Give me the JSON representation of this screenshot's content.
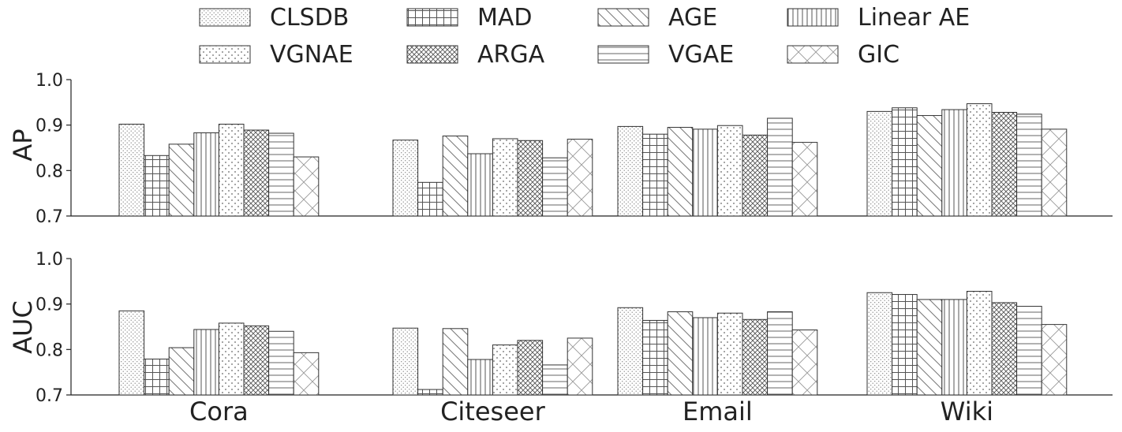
{
  "chart_data": {
    "type": "bar",
    "categories": [
      "Cora",
      "Citeseer",
      "Email",
      "Wiki"
    ],
    "legend_placement": "top-center",
    "grid": false,
    "legend": [
      "CLSDB",
      "MAD",
      "AGE",
      "Linear AE",
      "VGNAE",
      "ARGA",
      "VGAE",
      "GIC"
    ],
    "panels": [
      {
        "ylabel": "AP",
        "ylim": [
          0.7,
          1.0
        ],
        "yticks": [
          "0.7",
          "0.8",
          "0.9",
          "1.0"
        ],
        "series": [
          {
            "name": "CLSDB",
            "values": [
              0.902,
              0.867,
              0.897,
              0.93
            ]
          },
          {
            "name": "MAD",
            "values": [
              0.833,
              0.774,
              0.88,
              0.938
            ]
          },
          {
            "name": "AGE",
            "values": [
              0.858,
              0.876,
              0.895,
              0.921
            ]
          },
          {
            "name": "Linear AE",
            "values": [
              0.883,
              0.837,
              0.891,
              0.934
            ]
          },
          {
            "name": "VGNAE",
            "values": [
              0.902,
              0.87,
              0.899,
              0.947
            ]
          },
          {
            "name": "ARGA",
            "values": [
              0.889,
              0.866,
              0.878,
              0.928
            ]
          },
          {
            "name": "VGAE",
            "values": [
              0.882,
              0.828,
              0.915,
              0.924
            ]
          },
          {
            "name": "GIC",
            "values": [
              0.83,
              0.869,
              0.862,
              0.891
            ]
          }
        ]
      },
      {
        "ylabel": "AUC",
        "ylim": [
          0.7,
          1.0
        ],
        "yticks": [
          "0.7",
          "0.8",
          "0.9",
          "1.0"
        ],
        "series": [
          {
            "name": "CLSDB",
            "values": [
              0.885,
              0.847,
              0.892,
              0.925
            ]
          },
          {
            "name": "MAD",
            "values": [
              0.779,
              0.712,
              0.864,
              0.921
            ]
          },
          {
            "name": "AGE",
            "values": [
              0.804,
              0.846,
              0.883,
              0.91
            ]
          },
          {
            "name": "Linear AE",
            "values": [
              0.844,
              0.778,
              0.87,
              0.91
            ]
          },
          {
            "name": "VGNAE",
            "values": [
              0.858,
              0.81,
              0.88,
              0.928
            ]
          },
          {
            "name": "ARGA",
            "values": [
              0.852,
              0.82,
              0.866,
              0.903
            ]
          },
          {
            "name": "VGAE",
            "values": [
              0.84,
              0.766,
              0.883,
              0.895
            ]
          },
          {
            "name": "GIC",
            "values": [
              0.793,
              0.825,
              0.843,
              0.855
            ]
          }
        ]
      }
    ]
  }
}
